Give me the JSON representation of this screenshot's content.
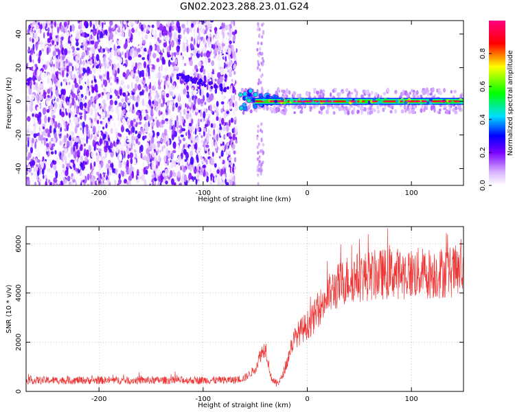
{
  "title": "GN02.2023.288.23.01.G24",
  "chart_data": [
    {
      "type": "heatmap",
      "xlabel": "Height of straight line (km)",
      "ylabel": "Frequency (Hz)",
      "xlim": [
        -270,
        150
      ],
      "ylim": [
        -50,
        48
      ],
      "xticks": [
        -200,
        -100,
        0,
        100
      ],
      "yticks": [
        -40,
        -20,
        0,
        20,
        40
      ],
      "colorbar": {
        "label": "Normalized spectral amplitude",
        "range": [
          0,
          1
        ],
        "ticks": [
          0.0,
          0.2,
          0.4,
          0.6,
          0.8
        ]
      },
      "features": {
        "noise_region_x": [
          -270,
          -68
        ],
        "isolated_column_x": -45,
        "tone_start_x": -65,
        "tone_frequency": 0,
        "peak_amplitude": 1.0
      }
    },
    {
      "type": "line",
      "xlabel": "Height of straight line (km)",
      "ylabel": "SNR (10 * v/v)",
      "xlim": [
        -270,
        150
      ],
      "ylim": [
        0,
        6700
      ],
      "xticks": [
        -200,
        -100,
        0,
        100
      ],
      "yticks": [
        0,
        2000,
        4000,
        6000
      ],
      "series_color": "#ee3333",
      "profile": [
        [
          -270,
          450
        ],
        [
          -200,
          450
        ],
        [
          -120,
          450
        ],
        [
          -70,
          460
        ],
        [
          -60,
          550
        ],
        [
          -50,
          900
        ],
        [
          -45,
          1500
        ],
        [
          -40,
          1800
        ],
        [
          -35,
          600
        ],
        [
          -30,
          300
        ],
        [
          -25,
          500
        ],
        [
          -20,
          1100
        ],
        [
          -15,
          1900
        ],
        [
          -10,
          2300
        ],
        [
          -5,
          2500
        ],
        [
          0,
          2700
        ],
        [
          5,
          2900
        ],
        [
          10,
          3300
        ],
        [
          20,
          3900
        ],
        [
          30,
          4300
        ],
        [
          40,
          4600
        ],
        [
          60,
          4700
        ],
        [
          80,
          4800
        ],
        [
          100,
          4800
        ],
        [
          120,
          4800
        ],
        [
          150,
          4900
        ]
      ]
    }
  ]
}
